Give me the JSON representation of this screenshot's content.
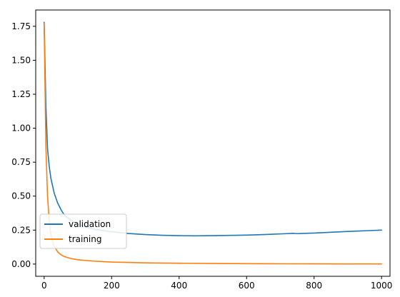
{
  "chart_data": {
    "type": "line",
    "title": "",
    "xlabel": "",
    "ylabel": "",
    "xlim": [
      -25,
      1025
    ],
    "ylim": [
      -0.09,
      1.87
    ],
    "xticks": [
      0,
      200,
      400,
      600,
      800,
      1000
    ],
    "yticks": [
      0.0,
      0.25,
      0.5,
      0.75,
      1.0,
      1.25,
      1.5,
      1.75
    ],
    "xtick_labels": [
      "0",
      "200",
      "400",
      "600",
      "800",
      "1000"
    ],
    "ytick_labels": [
      "0.00",
      "0.25",
      "0.50",
      "0.75",
      "1.00",
      "1.25",
      "1.50",
      "1.75"
    ],
    "grid": false,
    "legend_position": "lower-left",
    "series": [
      {
        "name": "validation",
        "color": "#1f77b4",
        "x": [
          0,
          5,
          10,
          15,
          20,
          30,
          40,
          50,
          60,
          80,
          100,
          120,
          150,
          200,
          250,
          300,
          350,
          400,
          450,
          500,
          550,
          600,
          650,
          700,
          740,
          750,
          760,
          800,
          850,
          900,
          950,
          1000
        ],
        "y": [
          1.78,
          1.18,
          0.85,
          0.72,
          0.63,
          0.52,
          0.45,
          0.4,
          0.36,
          0.32,
          0.295,
          0.275,
          0.255,
          0.238,
          0.225,
          0.217,
          0.212,
          0.209,
          0.208,
          0.209,
          0.211,
          0.213,
          0.217,
          0.222,
          0.226,
          0.224,
          0.225,
          0.228,
          0.234,
          0.24,
          0.245,
          0.25
        ]
      },
      {
        "name": "training",
        "color": "#ff7f0e",
        "x": [
          0,
          5,
          10,
          15,
          20,
          25,
          30,
          40,
          50,
          60,
          80,
          100,
          130,
          160,
          200,
          250,
          300,
          400,
          500,
          600,
          700,
          800,
          900,
          1000
        ],
        "y": [
          1.77,
          0.88,
          0.5,
          0.32,
          0.22,
          0.165,
          0.13,
          0.09,
          0.068,
          0.055,
          0.04,
          0.032,
          0.025,
          0.02,
          0.015,
          0.012,
          0.009,
          0.006,
          0.004,
          0.003,
          0.002,
          0.0015,
          0.001,
          0.001
        ]
      }
    ]
  }
}
